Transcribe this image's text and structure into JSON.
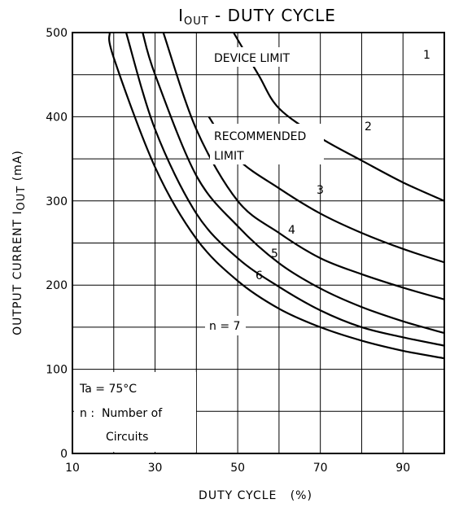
{
  "chart_data": {
    "type": "line",
    "title": {
      "prefix": "I",
      "sub": "OUT",
      "rest": " - DUTY CYCLE"
    },
    "xlabel": "DUTY CYCLE   (%)",
    "ylabel": {
      "prefix": "OUTPUT CURRENT  I",
      "sub": "OUT",
      "rest": "  (mA)"
    },
    "xlim": [
      10,
      100
    ],
    "ylim": [
      0,
      500
    ],
    "x_ticks": [
      "10",
      "30",
      "50",
      "70",
      "90"
    ],
    "y_ticks": [
      "0",
      "100",
      "200",
      "300",
      "400",
      "500"
    ],
    "grid": true,
    "series": [
      {
        "name": "1",
        "x": [],
        "y": []
      },
      {
        "name": "2",
        "x": [
          49,
          55,
          60,
          70,
          80,
          90,
          100
        ],
        "y": [
          500,
          450,
          410,
          375,
          348,
          322,
          300
        ]
      },
      {
        "name": "3",
        "x": [
          43,
          50,
          60,
          70,
          80,
          90,
          100
        ],
        "y": [
          400,
          350,
          315,
          285,
          262,
          243,
          227
        ]
      },
      {
        "name": "4",
        "x": [
          32,
          40,
          50,
          60,
          70,
          80,
          90,
          100
        ],
        "y": [
          500,
          385,
          300,
          262,
          232,
          213,
          197,
          183
        ]
      },
      {
        "name": "5",
        "x": [
          27,
          30,
          40,
          50,
          60,
          70,
          80,
          90,
          100
        ],
        "y": [
          500,
          450,
          330,
          270,
          226,
          196,
          174,
          157,
          143
        ]
      },
      {
        "name": "6",
        "x": [
          23,
          30,
          40,
          50,
          60,
          70,
          80,
          90,
          100
        ],
        "y": [
          500,
          385,
          285,
          232,
          198,
          170,
          150,
          138,
          128
        ]
      },
      {
        "name": "n = 7",
        "x": [
          19,
          20,
          30,
          40,
          50,
          60,
          70,
          80,
          90,
          100
        ],
        "y": [
          500,
          470,
          340,
          255,
          205,
          172,
          150,
          134,
          122,
          113
        ]
      }
    ],
    "annotations": [
      "DEVICE LIMIT",
      "RECOMMENDED",
      "LIMIT"
    ],
    "notes": [
      "Ta = 75°C",
      "n :  Number of",
      "Circuits"
    ]
  }
}
